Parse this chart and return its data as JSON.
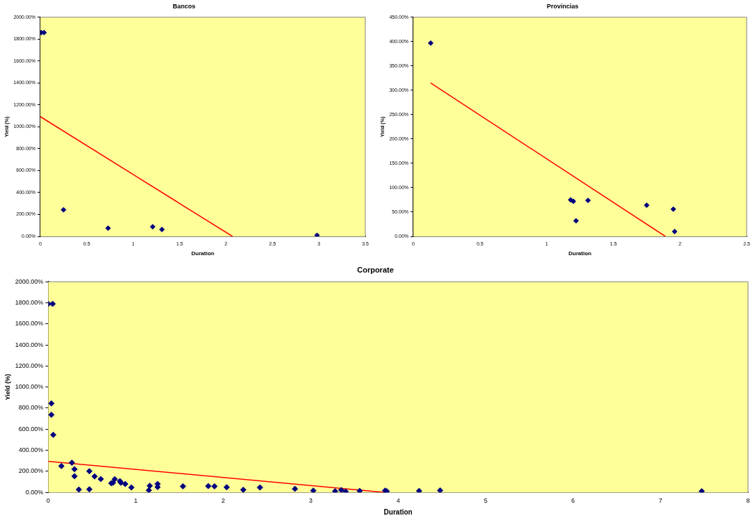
{
  "chart_data": [
    {
      "type": "scatter",
      "title": "Bancos",
      "xlabel": "Duration",
      "ylabel": "Yield (%)",
      "xlim": [
        0,
        3.5
      ],
      "ylim": [
        0,
        2000
      ],
      "xticks": [
        0,
        0.5,
        1,
        1.5,
        2,
        2.5,
        3,
        3.5
      ],
      "yticks": [
        {
          "value": 0,
          "label": "0.00%"
        },
        {
          "value": 200,
          "label": "200.00%"
        },
        {
          "value": 400,
          "label": "400.00%"
        },
        {
          "value": 600,
          "label": "600.00%"
        },
        {
          "value": 800,
          "label": "800.00%"
        },
        {
          "value": 1000,
          "label": "1000.00%"
        },
        {
          "value": 1200,
          "label": "1200.00%"
        },
        {
          "value": 1400,
          "label": "1400.00%"
        },
        {
          "value": 1600,
          "label": "1600.00%"
        },
        {
          "value": 1800,
          "label": "1800.00%"
        },
        {
          "value": 2000,
          "label": "2000.00%"
        }
      ],
      "grid": false,
      "legend": false,
      "marker": "diamond",
      "series": [
        {
          "type": "scatter",
          "color": "#000080",
          "x": [
            0.01,
            0.04,
            0.25,
            0.73,
            1.21,
            1.31,
            2.98
          ],
          "values": [
            1860,
            1860,
            243,
            75,
            88,
            63,
            10
          ]
        },
        {
          "type": "line",
          "color": "#ff0000",
          "marker": "none",
          "x": [
            0,
            2.07
          ],
          "values": [
            1093,
            0
          ]
        }
      ]
    },
    {
      "type": "scatter",
      "title": "Provincias",
      "xlabel": "Duration",
      "ylabel": "Yield (%)",
      "xlim": [
        0,
        2.5
      ],
      "ylim": [
        0,
        450
      ],
      "xticks": [
        0,
        0.5,
        1,
        1.5,
        2,
        2.5
      ],
      "yticks": [
        {
          "value": 0,
          "label": "0.00%"
        },
        {
          "value": 50,
          "label": "50.00%"
        },
        {
          "value": 100,
          "label": "100.00%"
        },
        {
          "value": 150,
          "label": "150.00%"
        },
        {
          "value": 200,
          "label": "200.00%"
        },
        {
          "value": 250,
          "label": "250.00%"
        },
        {
          "value": 300,
          "label": "300.00%"
        },
        {
          "value": 350,
          "label": "350.00%"
        },
        {
          "value": 400,
          "label": "400.00%"
        },
        {
          "value": 450,
          "label": "450.00%"
        }
      ],
      "grid": false,
      "legend": false,
      "marker": "diamond",
      "series": [
        {
          "type": "scatter",
          "color": "#000080",
          "x": [
            0.13,
            1.18,
            1.2,
            1.22,
            1.31,
            1.75,
            1.95,
            1.96
          ],
          "values": [
            397,
            75,
            72,
            32,
            74,
            64,
            56,
            10
          ]
        },
        {
          "type": "line",
          "color": "#ff0000",
          "marker": "none",
          "x": [
            0.13,
            1.89
          ],
          "values": [
            315,
            0
          ]
        }
      ]
    },
    {
      "type": "scatter",
      "title": "Corporate",
      "xlabel": "Duration",
      "ylabel": "Yield (%)",
      "xlim": [
        0,
        8
      ],
      "ylim": [
        0,
        2000
      ],
      "xticks": [
        0,
        1,
        2,
        3,
        4,
        5,
        6,
        7,
        8
      ],
      "yticks": [
        {
          "value": 0,
          "label": "0.00%"
        },
        {
          "value": 200,
          "label": "200.00%"
        },
        {
          "value": 400,
          "label": "400.00%"
        },
        {
          "value": 600,
          "label": "600.00%"
        },
        {
          "value": 800,
          "label": "800.00%"
        },
        {
          "value": 1000,
          "label": "1000.00%"
        },
        {
          "value": 1200,
          "label": "1200.00%"
        },
        {
          "value": 1400,
          "label": "1400.00%"
        },
        {
          "value": 1600,
          "label": "1600.00%"
        },
        {
          "value": 1800,
          "label": "1800.00%"
        },
        {
          "value": 2000,
          "label": "2000.00%"
        }
      ],
      "grid": false,
      "legend": false,
      "marker": "diamond",
      "series": [
        {
          "type": "scatter",
          "color": "#000080",
          "x": [
            0,
            0.05,
            0.036,
            0.036,
            0.057,
            0.15,
            0.27,
            0.3,
            0.3,
            0.35,
            0.47,
            0.47,
            0.53,
            0.6,
            0.72,
            0.74,
            0.76,
            0.82,
            0.83,
            0.88,
            0.95,
            1.15,
            1.16,
            1.25,
            1.25,
            1.54,
            1.83,
            1.9,
            2.04,
            2.23,
            2.42,
            2.82,
            3.03,
            3.28,
            3.35,
            3.4,
            3.56,
            3.85,
            3.87,
            4.24,
            4.48,
            7.47
          ],
          "values": [
            1790,
            1790,
            845,
            737,
            547,
            250,
            282,
            221,
            154,
            27,
            201,
            29,
            152,
            127,
            87,
            92,
            125,
            107,
            92,
            80,
            47,
            20,
            63,
            80,
            51,
            58,
            60,
            58,
            49,
            25,
            47,
            34,
            17,
            11,
            22,
            8,
            14,
            17,
            11,
            14,
            19,
            11
          ]
        },
        {
          "type": "line",
          "color": "#ff0000",
          "marker": "none",
          "x": [
            0,
            3.85
          ],
          "values": [
            295,
            0
          ]
        }
      ]
    }
  ]
}
